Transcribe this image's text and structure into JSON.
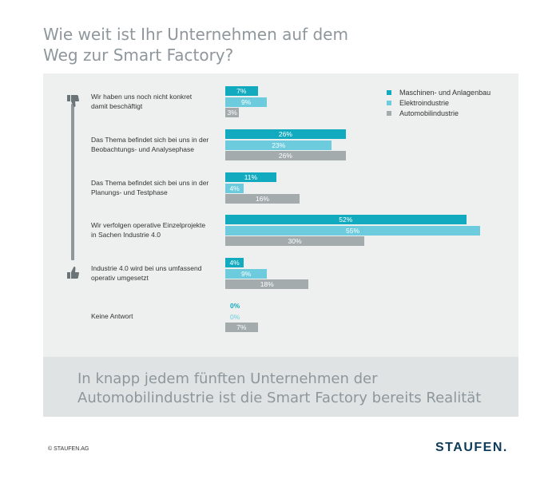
{
  "title_lines": [
    "Wie weit ist Ihr Unternehmen auf dem",
    "Weg zur Smart Factory?"
  ],
  "legend": [
    {
      "name": "Maschinen- und Anlagenbau",
      "color": "#12aabf"
    },
    {
      "name": "Elektroindustrie",
      "color": "#6ccbdc"
    },
    {
      "name": "Automobilindustrie",
      "color": "#a4abad"
    }
  ],
  "icons": {
    "top": "thumbs-down-icon",
    "bottom": "thumbs-up-icon"
  },
  "chart_data": {
    "type": "bar",
    "orientation": "horizontal",
    "categories": [
      [
        "Wir haben uns noch nicht konkret",
        "damit beschäftigt"
      ],
      [
        "Das Thema befindet sich bei uns in der",
        "Beobachtungs- und Analysephase"
      ],
      [
        "Das Thema befindet sich bei uns in der",
        "Planungs- und Testphase"
      ],
      [
        "Wir verfolgen operative Einzelprojekte",
        "in Sachen Industrie 4.0"
      ],
      [
        "Industrie 4.0 wird bei uns umfassend",
        "operativ umgesetzt"
      ],
      [
        "Keine Antwort"
      ]
    ],
    "series": [
      {
        "name": "Maschinen- und Anlagenbau",
        "color": "#12aabf",
        "values": [
          7,
          26,
          11,
          52,
          4,
          0
        ],
        "labels": [
          "7%",
          "26%",
          "11%",
          "52%",
          "4%",
          "0%"
        ]
      },
      {
        "name": "Elektroindustrie",
        "color": "#6ccbdc",
        "values": [
          9,
          23,
          4,
          55,
          9,
          0
        ],
        "labels": [
          "9%",
          "23%",
          "4%",
          "55%",
          "9%",
          "0%"
        ]
      },
      {
        "name": "Automobilindustrie",
        "color": "#a4abad",
        "values": [
          3,
          26,
          16,
          30,
          18,
          7
        ],
        "labels": [
          "3%",
          "26%",
          "16%",
          "30%",
          "18%",
          "7%"
        ]
      }
    ],
    "xlim": [
      0,
      100
    ],
    "legend_position": "top-right",
    "grid": false
  },
  "note_lines": [
    "In knapp jedem fünften Unternehmen der",
    "Automobilindustrie ist die Smart Factory bereits Realität"
  ],
  "copyright": "© STAUFEN.AG",
  "logo_text": "STAUFEN."
}
